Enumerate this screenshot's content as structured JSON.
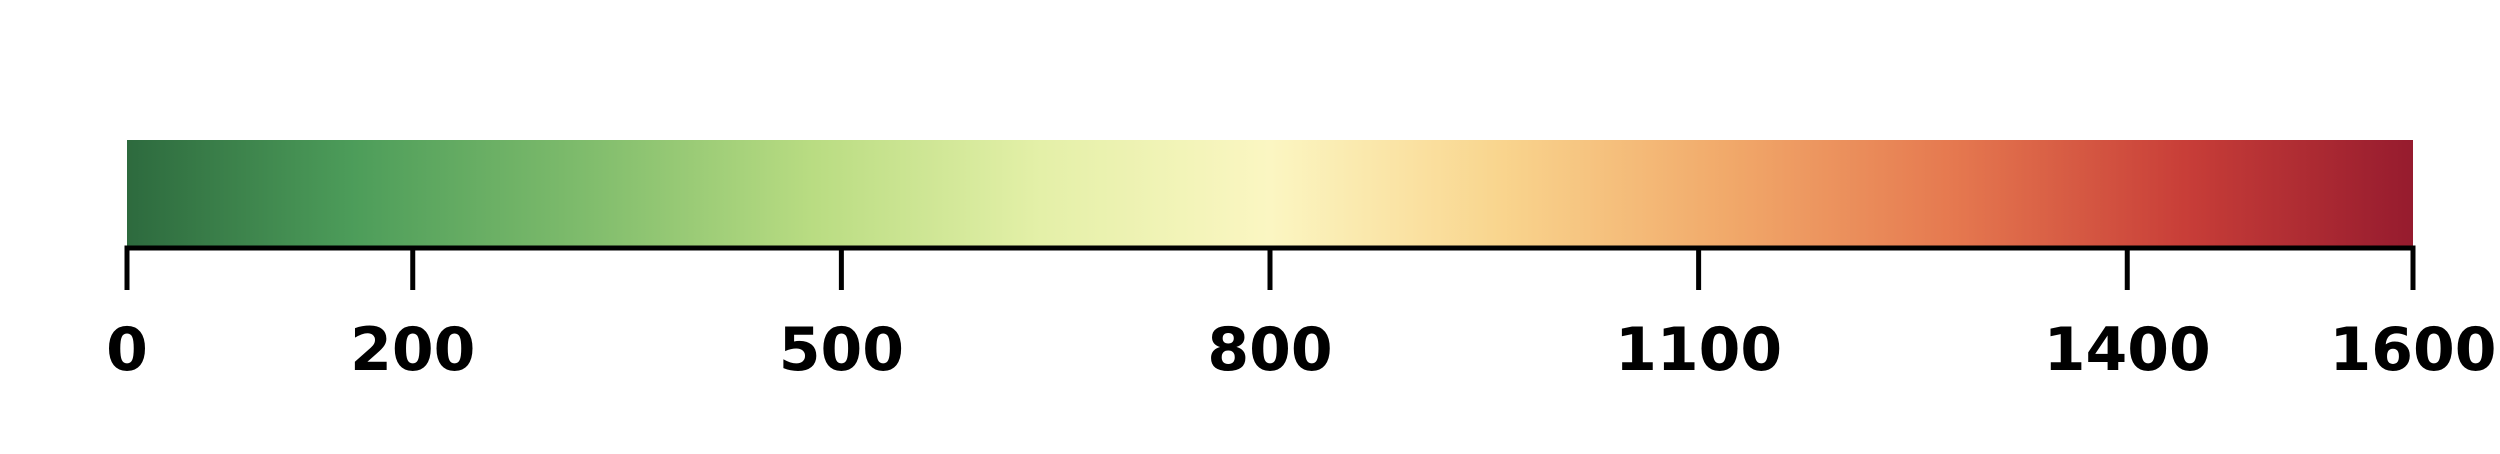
{
  "chart_data": {
    "type": "colorbar",
    "title": "",
    "xlabel": "",
    "orientation": "horizontal",
    "range": [
      0,
      1600
    ],
    "ticks": [
      0,
      200,
      500,
      800,
      1100,
      1400,
      1600
    ],
    "tick_labels": [
      "0",
      "200",
      "500",
      "800",
      "1100",
      "1400",
      "1600"
    ],
    "colormap": [
      {
        "value": 0,
        "color": "#2d6a3e"
      },
      {
        "value": 160,
        "color": "#4d9d5a"
      },
      {
        "value": 320,
        "color": "#7fbc6c"
      },
      {
        "value": 480,
        "color": "#b9dc82"
      },
      {
        "value": 640,
        "color": "#e4f0a8"
      },
      {
        "value": 800,
        "color": "#fbf6c2"
      },
      {
        "value": 960,
        "color": "#f9d58e"
      },
      {
        "value": 1120,
        "color": "#f1a96a"
      },
      {
        "value": 1280,
        "color": "#e5784f"
      },
      {
        "value": 1440,
        "color": "#c83e38"
      },
      {
        "value": 1600,
        "color": "#961b2e"
      }
    ]
  }
}
